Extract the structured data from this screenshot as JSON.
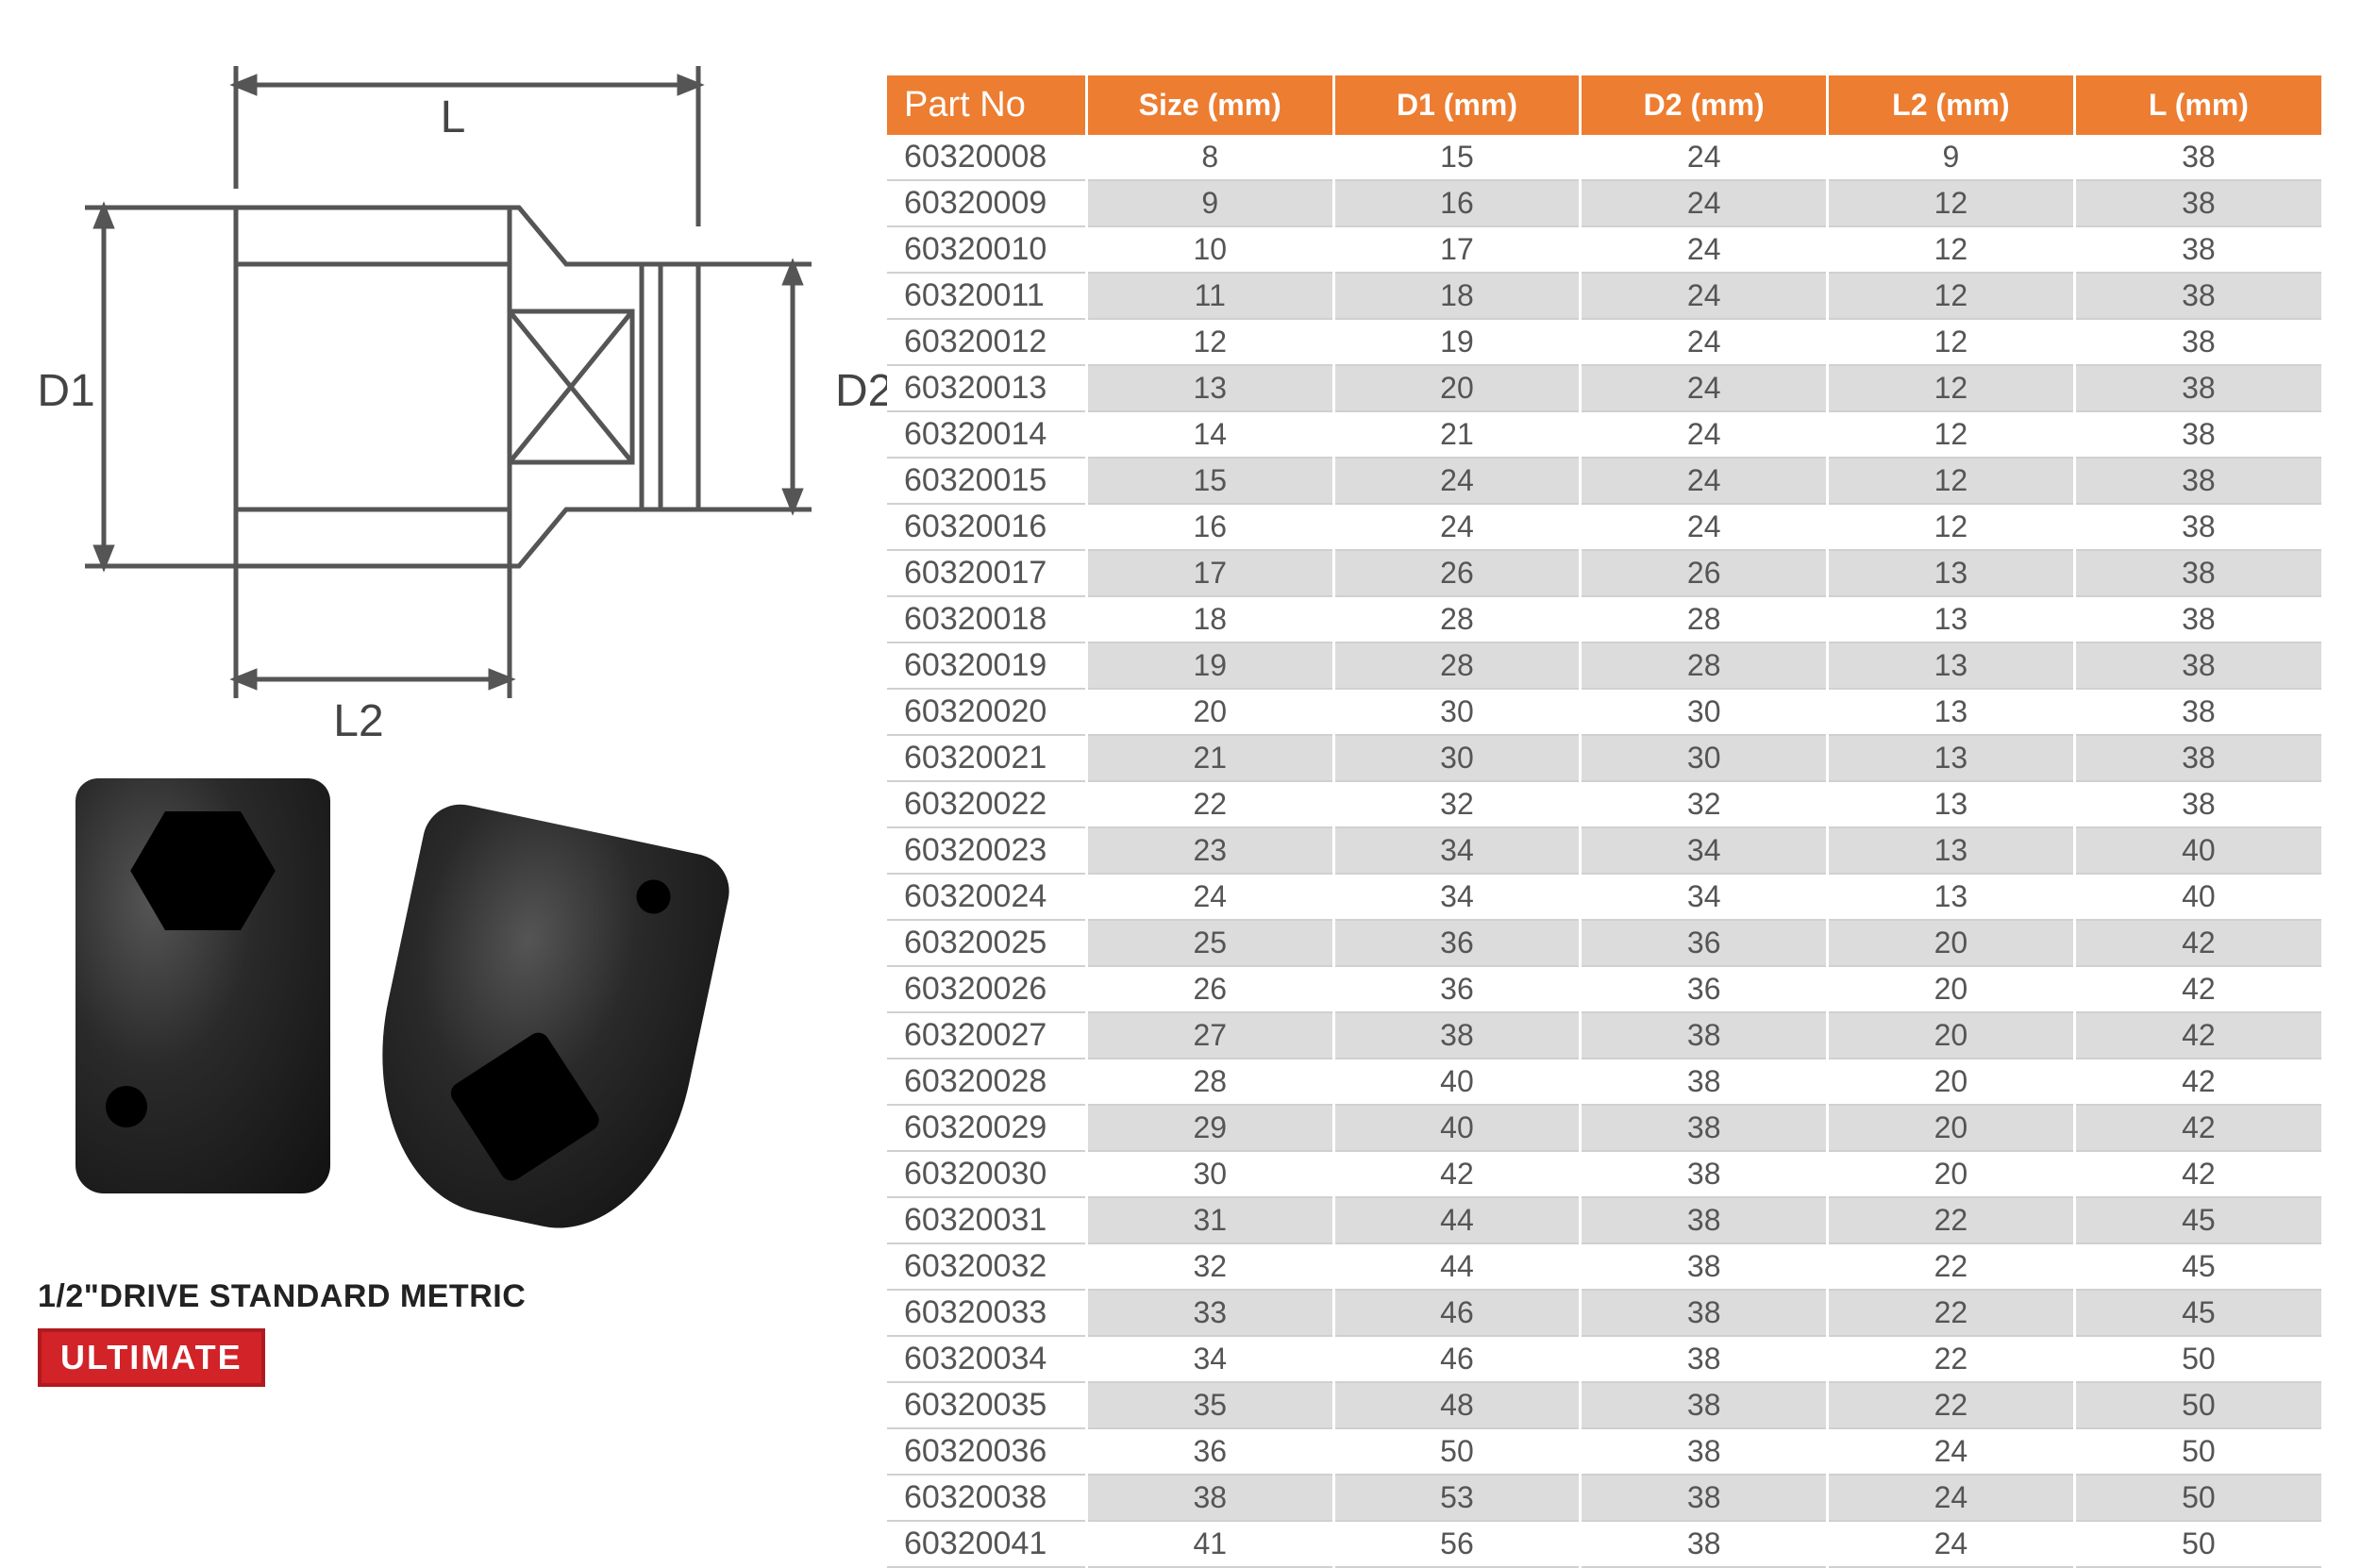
{
  "diagram": {
    "labels": {
      "L": "L",
      "L2": "L2",
      "D1": "D1",
      "D2": "D2"
    },
    "stroke": "#555555",
    "text_color": "#444444"
  },
  "caption": "1/2\"DRIVE STANDARD METRIC",
  "badge": "ULTIMATE",
  "badge_bg": "#d22328",
  "badge_border": "#b01a1f",
  "table": {
    "header_bg": "#ed7d31",
    "header_fg": "#ffffff",
    "alt_row_bg": "#dcdcdc",
    "border_color": "#d0d0d0",
    "font_size_header": 32,
    "font_size_body": 32,
    "columns": [
      "Part No",
      "Size (mm)",
      "D1 (mm)",
      "D2 (mm)",
      "L2 (mm)",
      "L (mm)"
    ],
    "rows": [
      [
        "60320008",
        "8",
        "15",
        "24",
        "9",
        "38"
      ],
      [
        "60320009",
        "9",
        "16",
        "24",
        "12",
        "38"
      ],
      [
        "60320010",
        "10",
        "17",
        "24",
        "12",
        "38"
      ],
      [
        "60320011",
        "11",
        "18",
        "24",
        "12",
        "38"
      ],
      [
        "60320012",
        "12",
        "19",
        "24",
        "12",
        "38"
      ],
      [
        "60320013",
        "13",
        "20",
        "24",
        "12",
        "38"
      ],
      [
        "60320014",
        "14",
        "21",
        "24",
        "12",
        "38"
      ],
      [
        "60320015",
        "15",
        "24",
        "24",
        "12",
        "38"
      ],
      [
        "60320016",
        "16",
        "24",
        "24",
        "12",
        "38"
      ],
      [
        "60320017",
        "17",
        "26",
        "26",
        "13",
        "38"
      ],
      [
        "60320018",
        "18",
        "28",
        "28",
        "13",
        "38"
      ],
      [
        "60320019",
        "19",
        "28",
        "28",
        "13",
        "38"
      ],
      [
        "60320020",
        "20",
        "30",
        "30",
        "13",
        "38"
      ],
      [
        "60320021",
        "21",
        "30",
        "30",
        "13",
        "38"
      ],
      [
        "60320022",
        "22",
        "32",
        "32",
        "13",
        "38"
      ],
      [
        "60320023",
        "23",
        "34",
        "34",
        "13",
        "40"
      ],
      [
        "60320024",
        "24",
        "34",
        "34",
        "13",
        "40"
      ],
      [
        "60320025",
        "25",
        "36",
        "36",
        "20",
        "42"
      ],
      [
        "60320026",
        "26",
        "36",
        "36",
        "20",
        "42"
      ],
      [
        "60320027",
        "27",
        "38",
        "38",
        "20",
        "42"
      ],
      [
        "60320028",
        "28",
        "40",
        "38",
        "20",
        "42"
      ],
      [
        "60320029",
        "29",
        "40",
        "38",
        "20",
        "42"
      ],
      [
        "60320030",
        "30",
        "42",
        "38",
        "20",
        "42"
      ],
      [
        "60320031",
        "31",
        "44",
        "38",
        "22",
        "45"
      ],
      [
        "60320032",
        "32",
        "44",
        "38",
        "22",
        "45"
      ],
      [
        "60320033",
        "33",
        "46",
        "38",
        "22",
        "45"
      ],
      [
        "60320034",
        "34",
        "46",
        "38",
        "22",
        "50"
      ],
      [
        "60320035",
        "35",
        "48",
        "38",
        "22",
        "50"
      ],
      [
        "60320036",
        "36",
        "50",
        "38",
        "24",
        "50"
      ],
      [
        "60320038",
        "38",
        "53",
        "38",
        "24",
        "50"
      ],
      [
        "60320041",
        "41",
        "56",
        "38",
        "24",
        "50"
      ]
    ]
  }
}
